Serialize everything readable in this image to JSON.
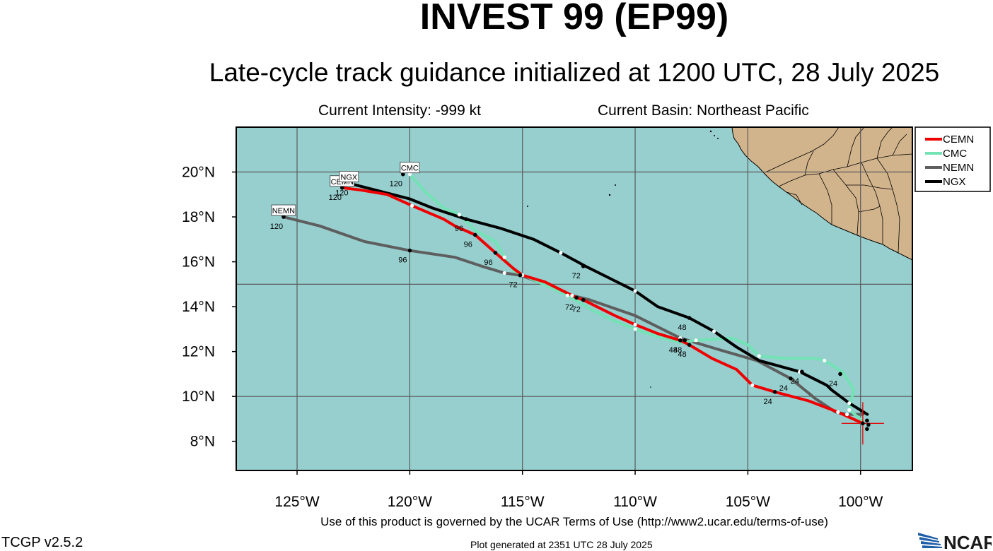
{
  "header": {
    "title": "INVEST 99 (EP99)",
    "subtitle": "Late-cycle track guidance initialized at 1200 UTC, 28 July 2025",
    "current_intensity": "Current Intensity: -999 kt",
    "current_basin": "Current Basin: Northeast Pacific"
  },
  "footer": {
    "terms": "Use of this product is governed by the UCAR Terms of Use (http://www2.ucar.edu/terms-of-use)",
    "version": "TCGP v2.5.2",
    "generated": "Plot generated at 2351 UTC   28 July 2025",
    "logo_text": "NCAR"
  },
  "map": {
    "lon_range": [
      -127.7,
      -97.7
    ],
    "lat_range": [
      6.7,
      22.0
    ],
    "lon_ticks": [
      {
        "value": -125,
        "label": "125°W"
      },
      {
        "value": -120,
        "label": "120°W"
      },
      {
        "value": -115,
        "label": "115°W"
      },
      {
        "value": -110,
        "label": "110°W"
      },
      {
        "value": -105,
        "label": "105°W"
      },
      {
        "value": -100,
        "label": "100°W"
      }
    ],
    "lat_ticks": [
      {
        "value": 8,
        "label": "8°N"
      },
      {
        "value": 10,
        "label": "10°N"
      },
      {
        "value": 12,
        "label": "12°N"
      },
      {
        "value": 14,
        "label": "14°N"
      },
      {
        "value": 16,
        "label": "16°N"
      },
      {
        "value": 18,
        "label": "18°N"
      },
      {
        "value": 20,
        "label": "20°N"
      }
    ],
    "grid_lons": [
      -125,
      -120,
      -115,
      -110,
      -105,
      -100
    ],
    "grid_lats": [
      10,
      15,
      20
    ],
    "colors": {
      "ocean": "#97cfcf",
      "land": "#d2b48c",
      "grid": "#5a5a5a",
      "current_position_marker": "#e01010"
    },
    "current_position": {
      "lon": -99.9,
      "lat": 8.8
    }
  },
  "chart_data": {
    "type": "map_tracks",
    "legend_placement": "right",
    "series": [
      {
        "name": "CEMN",
        "color": "#ee0000",
        "track": [
          [
            -99.9,
            8.8
          ],
          [
            -101.0,
            9.3
          ],
          [
            -102.3,
            9.8
          ],
          [
            -103.8,
            10.2
          ],
          [
            -104.8,
            10.5
          ],
          [
            -105.5,
            11.2
          ],
          [
            -106.6,
            11.7
          ],
          [
            -107.6,
            12.3
          ],
          [
            -108.0,
            12.5
          ],
          [
            -109.0,
            12.8
          ],
          [
            -110.0,
            13.2
          ],
          [
            -110.9,
            13.6
          ],
          [
            -112.3,
            14.3
          ],
          [
            -112.6,
            14.4
          ],
          [
            -113.0,
            14.6
          ],
          [
            -114.0,
            15.1
          ],
          [
            -115.0,
            15.4
          ],
          [
            -115.4,
            15.7
          ],
          [
            -116.2,
            16.4
          ],
          [
            -117.1,
            17.2
          ],
          [
            -118.0,
            17.6
          ],
          [
            -118.5,
            17.9
          ],
          [
            -119.9,
            18.5
          ],
          [
            -121.0,
            19.0
          ],
          [
            -122.2,
            19.2
          ],
          [
            -123.0,
            19.3
          ]
        ],
        "markers": [
          {
            "lon": -103.8,
            "lat": 10.2,
            "label": "24"
          },
          {
            "lon": -107.6,
            "lat": 12.3,
            "label": "48"
          },
          {
            "lon": -112.3,
            "lat": 14.3,
            "label": "72"
          },
          {
            "lon": -116.2,
            "lat": 16.4,
            "label": "96"
          },
          {
            "lon": -123.0,
            "lat": 19.3,
            "label": "120"
          }
        ],
        "end_label": "CEMN"
      },
      {
        "name": "CMC",
        "color": "#73e3b5",
        "track": [
          [
            -99.9,
            8.9
          ],
          [
            -100.5,
            9.4
          ],
          [
            -100.3,
            10.3
          ],
          [
            -100.8,
            11.1
          ],
          [
            -101.6,
            11.6
          ],
          [
            -102.0,
            11.7
          ],
          [
            -103.4,
            11.7
          ],
          [
            -104.5,
            11.8
          ],
          [
            -105.0,
            12.3
          ],
          [
            -105.7,
            12.6
          ],
          [
            -107.3,
            12.5
          ],
          [
            -108.0,
            12.4
          ],
          [
            -108.8,
            12.6
          ],
          [
            -110.0,
            13.0
          ],
          [
            -111.0,
            13.4
          ],
          [
            -112.0,
            13.9
          ],
          [
            -113.0,
            14.5
          ],
          [
            -114.5,
            15.2
          ],
          [
            -115.4,
            15.6
          ],
          [
            -115.8,
            16.2
          ],
          [
            -116.2,
            16.9
          ],
          [
            -117.1,
            17.4
          ],
          [
            -117.8,
            18.1
          ],
          [
            -118.5,
            18.4
          ],
          [
            -119.3,
            19.1
          ],
          [
            -120.0,
            19.9
          ]
        ],
        "markers": [
          {
            "lon": -100.9,
            "lat": 11.0,
            "label": "24"
          },
          {
            "lon": -107.8,
            "lat": 12.5,
            "label": "48"
          },
          {
            "lon": -112.6,
            "lat": 14.4,
            "label": "72"
          },
          {
            "lon": -117.1,
            "lat": 17.2,
            "label": "96"
          },
          {
            "lon": -120.3,
            "lat": 19.9,
            "label": "120"
          }
        ],
        "end_label": "CMC"
      },
      {
        "name": "NEMN",
        "color": "#5e5e5e",
        "track": [
          [
            -99.9,
            9.2
          ],
          [
            -100.6,
            9.2
          ],
          [
            -101.1,
            9.3
          ],
          [
            -102.0,
            9.9
          ],
          [
            -103.1,
            10.8
          ],
          [
            -104.6,
            11.6
          ],
          [
            -106.0,
            12.0
          ],
          [
            -108.0,
            12.6
          ],
          [
            -110.0,
            13.6
          ],
          [
            -112.0,
            14.3
          ],
          [
            -112.8,
            14.5
          ],
          [
            -114.0,
            15.0
          ],
          [
            -115.1,
            15.4
          ],
          [
            -115.8,
            15.5
          ],
          [
            -116.8,
            15.8
          ],
          [
            -118.0,
            16.2
          ],
          [
            -120.0,
            16.5
          ],
          [
            -122.0,
            16.9
          ],
          [
            -124.0,
            17.6
          ],
          [
            -125.6,
            18.0
          ]
        ],
        "markers": [
          {
            "lon": -103.1,
            "lat": 10.8,
            "label": "24"
          },
          {
            "lon": -108.0,
            "lat": 12.5,
            "label": "48"
          },
          {
            "lon": -115.1,
            "lat": 15.4,
            "label": "72"
          },
          {
            "lon": -120.0,
            "lat": 16.5,
            "label": "96"
          },
          {
            "lon": -125.6,
            "lat": 18.0,
            "label": "120"
          }
        ],
        "end_label": "NEMN"
      },
      {
        "name": "NGX",
        "color": "#000000",
        "track": [
          [
            -99.7,
            9.2
          ],
          [
            -100.5,
            9.7
          ],
          [
            -101.3,
            10.3
          ],
          [
            -101.5,
            10.5
          ],
          [
            -102.7,
            11.1
          ],
          [
            -104.5,
            11.6
          ],
          [
            -105.5,
            12.2
          ],
          [
            -106.5,
            12.9
          ],
          [
            -107.6,
            13.5
          ],
          [
            -109.0,
            14.0
          ],
          [
            -110.0,
            14.7
          ],
          [
            -111.0,
            15.2
          ],
          [
            -112.2,
            15.8
          ],
          [
            -113.3,
            16.4
          ],
          [
            -114.5,
            17.0
          ],
          [
            -116.0,
            17.5
          ],
          [
            -117.5,
            17.9
          ],
          [
            -119.0,
            18.4
          ],
          [
            -120.0,
            18.8
          ],
          [
            -122.7,
            19.5
          ]
        ],
        "markers": [
          {
            "lon": -102.6,
            "lat": 11.1,
            "label": "24"
          },
          {
            "lon": -107.6,
            "lat": 13.5,
            "label": "48"
          },
          {
            "lon": -112.3,
            "lat": 15.8,
            "label": "72"
          },
          {
            "lon": -117.5,
            "lat": 17.9,
            "label": "96"
          },
          {
            "lon": -122.7,
            "lat": 19.5,
            "label": "120"
          }
        ],
        "end_label": "NGX"
      }
    ]
  }
}
